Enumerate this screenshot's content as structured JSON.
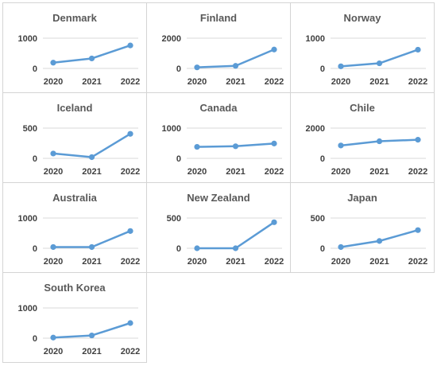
{
  "colors": {
    "line": "#5b9bd5",
    "gridline": "#d9d9d9",
    "title_text": "#595959",
    "tick_text": "#404040",
    "border": "#d4d4d4"
  },
  "chart_data": [
    {
      "type": "line",
      "title": "Denmark",
      "categories": [
        "2020",
        "2021",
        "2022"
      ],
      "values": [
        190,
        330,
        760
      ],
      "ylim": [
        0,
        1000
      ],
      "yticks": [
        "0",
        "1000"
      ],
      "grid": true,
      "legend": "none"
    },
    {
      "type": "line",
      "title": "Finland",
      "categories": [
        "2020",
        "2021",
        "2022"
      ],
      "values": [
        70,
        170,
        1250
      ],
      "ylim": [
        0,
        2000
      ],
      "yticks": [
        "0",
        "2000"
      ],
      "grid": true,
      "legend": "none"
    },
    {
      "type": "line",
      "title": "Norway",
      "categories": [
        "2020",
        "2021",
        "2022"
      ],
      "values": [
        70,
        170,
        620
      ],
      "ylim": [
        0,
        1000
      ],
      "yticks": [
        "0",
        "1000"
      ],
      "grid": true,
      "legend": "none"
    },
    {
      "type": "line",
      "title": "Iceland",
      "categories": [
        "2020",
        "2021",
        "2022"
      ],
      "values": [
        80,
        20,
        405
      ],
      "ylim": [
        0,
        500
      ],
      "yticks": [
        "0",
        "500"
      ],
      "grid": true,
      "legend": "none"
    },
    {
      "type": "line",
      "title": "Canada",
      "categories": [
        "2020",
        "2021",
        "2022"
      ],
      "values": [
        380,
        400,
        490
      ],
      "ylim": [
        0,
        1000
      ],
      "yticks": [
        "0",
        "1000"
      ],
      "grid": true,
      "legend": "none"
    },
    {
      "type": "line",
      "title": "Chile",
      "categories": [
        "2020",
        "2021",
        "2022"
      ],
      "values": [
        850,
        1130,
        1230
      ],
      "ylim": [
        0,
        2000
      ],
      "yticks": [
        "0",
        "2000"
      ],
      "grid": true,
      "legend": "none"
    },
    {
      "type": "line",
      "title": "Australia",
      "categories": [
        "2020",
        "2021",
        "2022"
      ],
      "values": [
        40,
        40,
        570
      ],
      "ylim": [
        0,
        1000
      ],
      "yticks": [
        "0",
        "1000"
      ],
      "grid": true,
      "legend": "none"
    },
    {
      "type": "line",
      "title": "New Zealand",
      "categories": [
        "2020",
        "2021",
        "2022"
      ],
      "values": [
        0,
        0,
        430
      ],
      "ylim": [
        0,
        500
      ],
      "yticks": [
        "0",
        "500"
      ],
      "grid": true,
      "legend": "none"
    },
    {
      "type": "line",
      "title": "Japan",
      "categories": [
        "2020",
        "2021",
        "2022"
      ],
      "values": [
        20,
        120,
        300
      ],
      "ylim": [
        0,
        500
      ],
      "yticks": [
        "0",
        "500"
      ],
      "grid": true,
      "legend": "none"
    },
    {
      "type": "line",
      "title": "South Korea",
      "categories": [
        "2020",
        "2021",
        "2022"
      ],
      "values": [
        20,
        90,
        500
      ],
      "ylim": [
        0,
        1000
      ],
      "yticks": [
        "0",
        "1000"
      ],
      "grid": true,
      "legend": "none"
    }
  ]
}
